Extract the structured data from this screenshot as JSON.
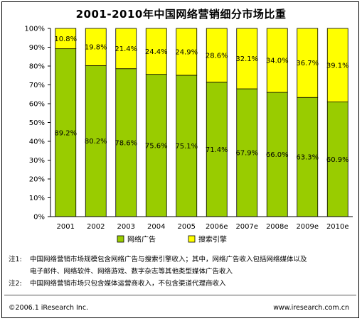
{
  "chart_data": {
    "type": "bar",
    "stacked": true,
    "title": "2001-2010年中国网络营销细分市场比重",
    "categories": [
      "2001",
      "2002",
      "2003",
      "2004",
      "2005",
      "2006e",
      "2007e",
      "2008e",
      "2009e",
      "2010e"
    ],
    "series": [
      {
        "name": "网络广告",
        "color": "#99cc00",
        "values": [
          89.2,
          80.2,
          78.6,
          75.6,
          75.1,
          71.4,
          67.9,
          66.0,
          63.3,
          60.9
        ],
        "labels": [
          "89.2%",
          "80.2%",
          "78.6%",
          "75.6%",
          "75.1%",
          "71.4%",
          "67.9%",
          "66.0%",
          "63.3%",
          "60.9%"
        ]
      },
      {
        "name": "搜索引擎",
        "color": "#ffff00",
        "values": [
          10.8,
          19.8,
          21.4,
          24.4,
          24.9,
          28.6,
          32.1,
          34.0,
          36.7,
          39.1
        ],
        "labels": [
          "10.8%",
          "19.8%",
          "21.4%",
          "24.4%",
          "24.9%",
          "28.6%",
          "32.1%",
          "34.0%",
          "36.7%",
          "39.1%"
        ]
      }
    ],
    "ylim": [
      0,
      100
    ],
    "yticks": [
      "0%",
      "10%",
      "20%",
      "30%",
      "40%",
      "50%",
      "60%",
      "70%",
      "80%",
      "90%",
      "100%"
    ],
    "grid": false,
    "legend_position": "bottom"
  },
  "notes": [
    {
      "tag": "注1:",
      "lines": [
        "中国网络营销市场规模包含网络广告与搜索引擎收入；其中，网络广告收入包括网络媒体以及",
        "电子邮件、网络软件、网络游戏、数字杂志等其他类型媒体广告收入"
      ]
    },
    {
      "tag": "注2:",
      "lines": [
        "中国网络营销市场只包含媒体运营商收入，不包含渠道代理商收入"
      ]
    }
  ],
  "footer": {
    "copyright": "©2006.1 iResearch Inc.",
    "website": "www.iresearch.com.cn"
  }
}
